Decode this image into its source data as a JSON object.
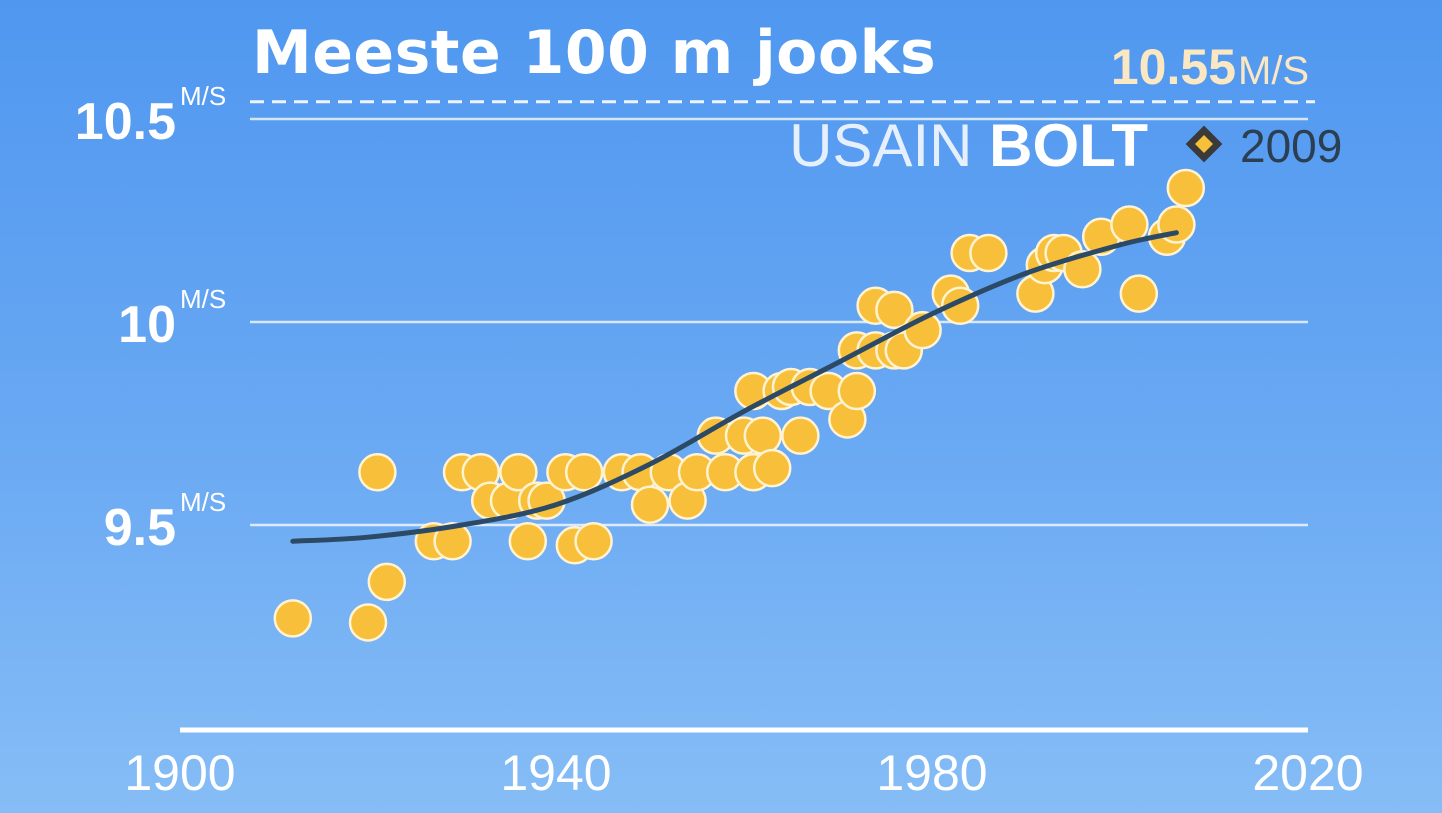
{
  "title": "Meeste 100 m jooks",
  "chart_data": {
    "type": "scatter",
    "title": "Meeste 100 m jooks",
    "xlim": [
      1900,
      2020
    ],
    "ylim": [
      9.1,
      10.55
    ],
    "grid": true,
    "x_ticks": [
      1900,
      1940,
      1980,
      2020
    ],
    "x_tick_labels": [
      "1900",
      "1940",
      "1980",
      "2020"
    ],
    "y_ticks": [
      {
        "value": 9.5,
        "label": "9.5",
        "unit": "M/S"
      },
      {
        "value": 10.0,
        "label": "10",
        "unit": "M/S"
      },
      {
        "value": 10.5,
        "label": "10.5",
        "unit": "M/S"
      }
    ],
    "record": {
      "value": 10.55,
      "value_label": "10.55",
      "unit": "M/S",
      "athlete_first": "USAIN",
      "athlete_last": "BOLT",
      "year": "2009"
    },
    "colors": {
      "point": "#f8c03a",
      "point_stroke": "#fff3d2",
      "trend": "#2c4a66",
      "record_value": "#fbe8c2"
    },
    "points": [
      {
        "x": 1912,
        "y": 9.27
      },
      {
        "x": 1920,
        "y": 9.26
      },
      {
        "x": 1922,
        "y": 9.36
      },
      {
        "x": 1921,
        "y": 9.63
      },
      {
        "x": 1927,
        "y": 9.46
      },
      {
        "x": 1929,
        "y": 9.46
      },
      {
        "x": 1930,
        "y": 9.63
      },
      {
        "x": 1932,
        "y": 9.63
      },
      {
        "x": 1933,
        "y": 9.56
      },
      {
        "x": 1935,
        "y": 9.56
      },
      {
        "x": 1936,
        "y": 9.63
      },
      {
        "x": 1937,
        "y": 9.46
      },
      {
        "x": 1938,
        "y": 9.56
      },
      {
        "x": 1939,
        "y": 9.56
      },
      {
        "x": 1941,
        "y": 9.63
      },
      {
        "x": 1942,
        "y": 9.45
      },
      {
        "x": 1943,
        "y": 9.63
      },
      {
        "x": 1944,
        "y": 9.46
      },
      {
        "x": 1947,
        "y": 9.63
      },
      {
        "x": 1949,
        "y": 9.63
      },
      {
        "x": 1950,
        "y": 9.55
      },
      {
        "x": 1952,
        "y": 9.63
      },
      {
        "x": 1954,
        "y": 9.56
      },
      {
        "x": 1955,
        "y": 9.63
      },
      {
        "x": 1957,
        "y": 9.72
      },
      {
        "x": 1958,
        "y": 9.63
      },
      {
        "x": 1960,
        "y": 9.72
      },
      {
        "x": 1961,
        "y": 9.83
      },
      {
        "x": 1961,
        "y": 9.63
      },
      {
        "x": 1962,
        "y": 9.72
      },
      {
        "x": 1963,
        "y": 9.64
      },
      {
        "x": 1964,
        "y": 9.83
      },
      {
        "x": 1965,
        "y": 9.84
      },
      {
        "x": 1966,
        "y": 9.72
      },
      {
        "x": 1967,
        "y": 9.84
      },
      {
        "x": 1969,
        "y": 9.83
      },
      {
        "x": 1971,
        "y": 9.76
      },
      {
        "x": 1972,
        "y": 9.83
      },
      {
        "x": 1972,
        "y": 9.93
      },
      {
        "x": 1974,
        "y": 10.04
      },
      {
        "x": 1974,
        "y": 9.93
      },
      {
        "x": 1976,
        "y": 10.03
      },
      {
        "x": 1976,
        "y": 9.93
      },
      {
        "x": 1977,
        "y": 9.93
      },
      {
        "x": 1979,
        "y": 9.98
      },
      {
        "x": 1982,
        "y": 10.07
      },
      {
        "x": 1983,
        "y": 10.04
      },
      {
        "x": 1984,
        "y": 10.17
      },
      {
        "x": 1986,
        "y": 10.17
      },
      {
        "x": 1991,
        "y": 10.07
      },
      {
        "x": 1992,
        "y": 10.14
      },
      {
        "x": 1993,
        "y": 10.17
      },
      {
        "x": 1994,
        "y": 10.17
      },
      {
        "x": 1996,
        "y": 10.13
      },
      {
        "x": 1998,
        "y": 10.21
      },
      {
        "x": 2001,
        "y": 10.24
      },
      {
        "x": 2002,
        "y": 10.07
      },
      {
        "x": 2005,
        "y": 10.21
      },
      {
        "x": 2006,
        "y": 10.24
      },
      {
        "x": 2007,
        "y": 10.33
      }
    ],
    "trend": [
      {
        "x": 1912,
        "y": 9.46
      },
      {
        "x": 1920,
        "y": 9.47
      },
      {
        "x": 1930,
        "y": 9.5
      },
      {
        "x": 1940,
        "y": 9.55
      },
      {
        "x": 1950,
        "y": 9.65
      },
      {
        "x": 1960,
        "y": 9.78
      },
      {
        "x": 1970,
        "y": 9.9
      },
      {
        "x": 1980,
        "y": 10.02
      },
      {
        "x": 1990,
        "y": 10.12
      },
      {
        "x": 2000,
        "y": 10.19
      },
      {
        "x": 2006,
        "y": 10.22
      }
    ]
  }
}
